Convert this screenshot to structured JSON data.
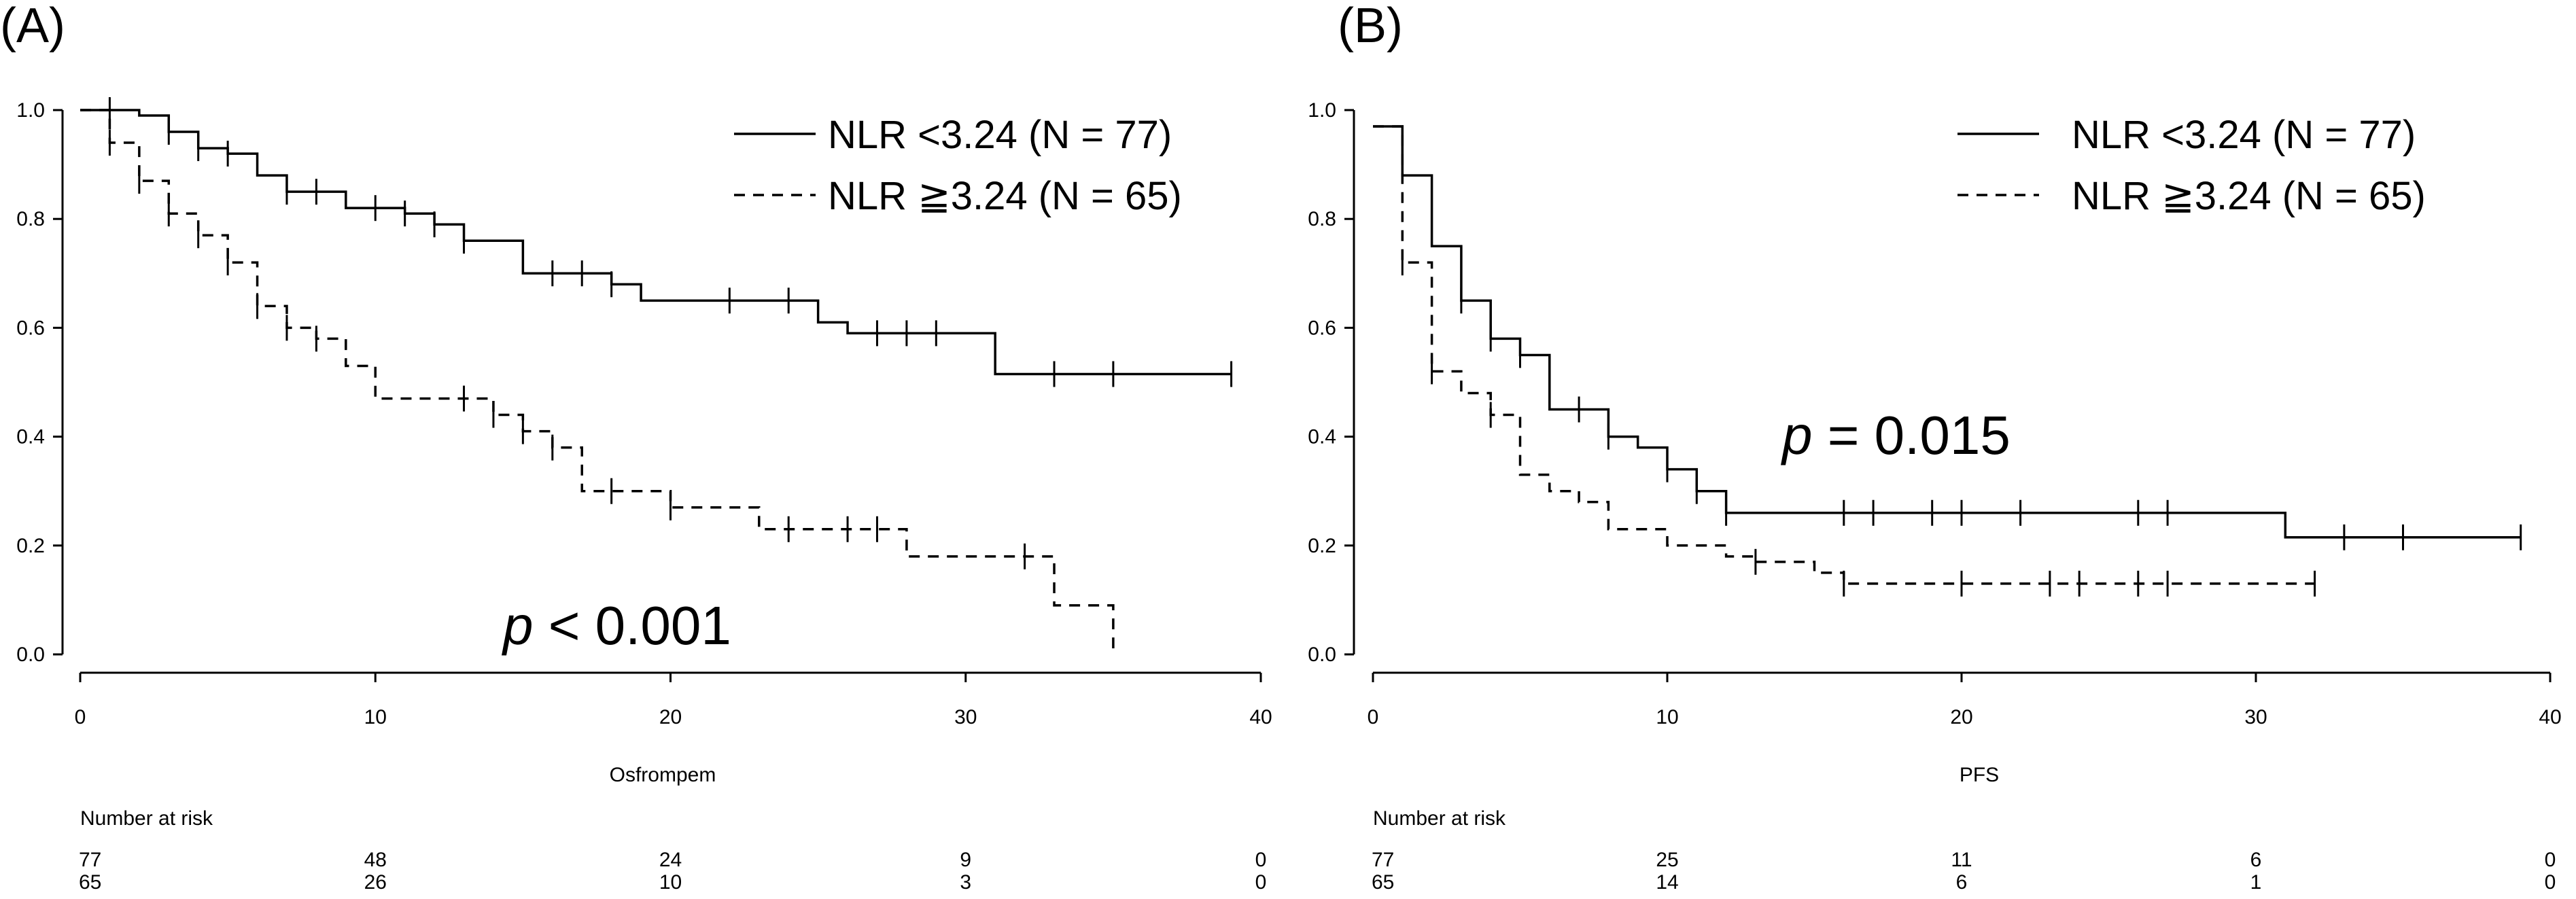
{
  "chart_data": [
    {
      "type": "line",
      "subtype": "kaplan-meier",
      "panel_label": "(A)",
      "xlabel": "Osfrompem",
      "ylabel": "",
      "xlim": [
        0,
        40
      ],
      "ylim": [
        0,
        1
      ],
      "xticks": [
        "0",
        "10",
        "20",
        "30",
        "40"
      ],
      "yticks": [
        "0.0",
        "0.2",
        "0.4",
        "0.6",
        "0.8",
        "1.0"
      ],
      "p_prefix": "p",
      "p_text": " < 0.001",
      "risk_title": "Number at risk",
      "risk_times": [
        0,
        10,
        20,
        30,
        40
      ],
      "series": [
        {
          "name": "NLR <3.24 (N = 77)",
          "style": "solid",
          "steps": [
            [
              0,
              1.0
            ],
            [
              2,
              0.99
            ],
            [
              3,
              0.96
            ],
            [
              4,
              0.93
            ],
            [
              5,
              0.92
            ],
            [
              6,
              0.88
            ],
            [
              7,
              0.85
            ],
            [
              9,
              0.82
            ],
            [
              11,
              0.81
            ],
            [
              12,
              0.79
            ],
            [
              13,
              0.76
            ],
            [
              15,
              0.7
            ],
            [
              18,
              0.68
            ],
            [
              19,
              0.65
            ],
            [
              25,
              0.61
            ],
            [
              26,
              0.59
            ],
            [
              31,
              0.515
            ],
            [
              39,
              0.515
            ]
          ],
          "censor_times": [
            1,
            3,
            4,
            5,
            7,
            8,
            10,
            11,
            12,
            13,
            16,
            17,
            18,
            22,
            24,
            27,
            28,
            29,
            33,
            35,
            39
          ],
          "risk": [
            "77",
            "48",
            "24",
            "9",
            "0"
          ]
        },
        {
          "name": "NLR ≧3.24 (N = 65)",
          "style": "dashed",
          "steps": [
            [
              0,
              1.0
            ],
            [
              1,
              0.94
            ],
            [
              2,
              0.87
            ],
            [
              3,
              0.81
            ],
            [
              4,
              0.77
            ],
            [
              5,
              0.72
            ],
            [
              6,
              0.64
            ],
            [
              7,
              0.6
            ],
            [
              8,
              0.58
            ],
            [
              9,
              0.53
            ],
            [
              10,
              0.47
            ],
            [
              14,
              0.44
            ],
            [
              15,
              0.41
            ],
            [
              16,
              0.38
            ],
            [
              17,
              0.3
            ],
            [
              20,
              0.27
            ],
            [
              23,
              0.23
            ],
            [
              28,
              0.18
            ],
            [
              33,
              0.09
            ],
            [
              35,
              0.0
            ]
          ],
          "censor_times": [
            1,
            2,
            3,
            4,
            5,
            6,
            7,
            8,
            13,
            14,
            15,
            16,
            18,
            20,
            24,
            26,
            27,
            32
          ],
          "risk": [
            "65",
            "26",
            "10",
            "3",
            "0"
          ]
        }
      ]
    },
    {
      "type": "line",
      "subtype": "kaplan-meier",
      "panel_label": "(B)",
      "xlabel": "PFS",
      "ylabel": "",
      "xlim": [
        0,
        40
      ],
      "ylim": [
        0,
        1
      ],
      "xticks": [
        "0",
        "10",
        "20",
        "30",
        "40"
      ],
      "yticks": [
        "0.0",
        "0.2",
        "0.4",
        "0.6",
        "0.8",
        "1.0"
      ],
      "p_prefix": "p",
      "p_text": " = 0.015",
      "risk_title": "Number at risk",
      "risk_times": [
        0,
        10,
        20,
        30,
        40
      ],
      "series": [
        {
          "name": "NLR <3.24 (N = 77)",
          "style": "solid",
          "steps": [
            [
              0,
              0.97
            ],
            [
              1,
              0.88
            ],
            [
              2,
              0.75
            ],
            [
              3,
              0.65
            ],
            [
              4,
              0.58
            ],
            [
              5,
              0.55
            ],
            [
              6,
              0.45
            ],
            [
              8,
              0.4
            ],
            [
              9,
              0.38
            ],
            [
              10,
              0.34
            ],
            [
              11,
              0.3
            ],
            [
              12,
              0.26
            ],
            [
              31,
              0.215
            ],
            [
              39,
              0.215
            ]
          ],
          "censor_times": [
            3,
            4,
            5,
            7,
            8,
            10,
            11,
            12,
            16,
            17,
            19,
            20,
            22,
            26,
            27,
            33,
            35,
            39
          ],
          "risk": [
            "77",
            "25",
            "11",
            "6",
            "0"
          ]
        },
        {
          "name": "NLR ≧3.24 (N = 65)",
          "style": "dashed",
          "steps": [
            [
              0,
              0.97
            ],
            [
              1,
              0.72
            ],
            [
              2,
              0.52
            ],
            [
              3,
              0.48
            ],
            [
              4,
              0.44
            ],
            [
              5,
              0.33
            ],
            [
              6,
              0.3
            ],
            [
              7,
              0.28
            ],
            [
              8,
              0.23
            ],
            [
              10,
              0.2
            ],
            [
              12,
              0.18
            ],
            [
              13,
              0.17
            ],
            [
              15,
              0.15
            ],
            [
              16,
              0.13
            ],
            [
              32,
              0.13
            ]
          ],
          "censor_times": [
            1,
            2,
            4,
            13,
            16,
            20,
            23,
            24,
            26,
            27,
            32
          ],
          "risk": [
            "65",
            "14",
            "6",
            "1",
            "0"
          ]
        }
      ]
    }
  ]
}
